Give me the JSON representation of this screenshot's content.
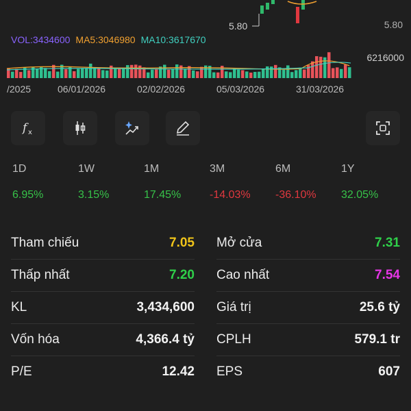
{
  "chart": {
    "price_low_label": "5.80",
    "right_axis_label": "5.80",
    "volume_axis_label": "6216000",
    "indicators": [
      {
        "label": "VOL:3434600",
        "color": "#8a63ff"
      },
      {
        "label": "MA5:3046980",
        "color": "#f0a030"
      },
      {
        "label": "MA10:3617670",
        "color": "#40d0c0"
      }
    ],
    "dates": [
      "/2025",
      "06/01/2026",
      "02/02/2026",
      "05/03/2026",
      "31/03/2026"
    ]
  },
  "toolbar": {
    "icons": [
      "function-icon",
      "candlestick-icon",
      "sparkle-chart-icon",
      "pencil-icon",
      "fullscreen-icon"
    ]
  },
  "performance": {
    "periods": [
      "1D",
      "1W",
      "1M",
      "3M",
      "6M",
      "1Y"
    ],
    "changes": [
      "6.95%",
      "3.15%",
      "17.45%",
      "-14.03%",
      "-36.10%",
      "32.05%"
    ],
    "colors": {
      "up": "#37c249",
      "down": "#e0383f"
    }
  },
  "stats": {
    "ref_label": "Tham chiếu",
    "ref_value": "7.05",
    "open_label": "Mở cửa",
    "open_value": "7.31",
    "low_label": "Thấp nhất",
    "low_value": "7.20",
    "high_label": "Cao nhất",
    "high_value": "7.54",
    "vol_label": "KL",
    "vol_value": "3,434,600",
    "trade_value_label": "Giá trị",
    "trade_value_value": "25.6 tỷ",
    "cap_label": "Vốn hóa",
    "cap_value": "4,366.4 tỷ",
    "shares_label": "CPLH",
    "shares_value": "579.1 tr",
    "pe_label": "P/E",
    "pe_value": "12.42",
    "eps_label": "EPS",
    "eps_value": "607"
  }
}
